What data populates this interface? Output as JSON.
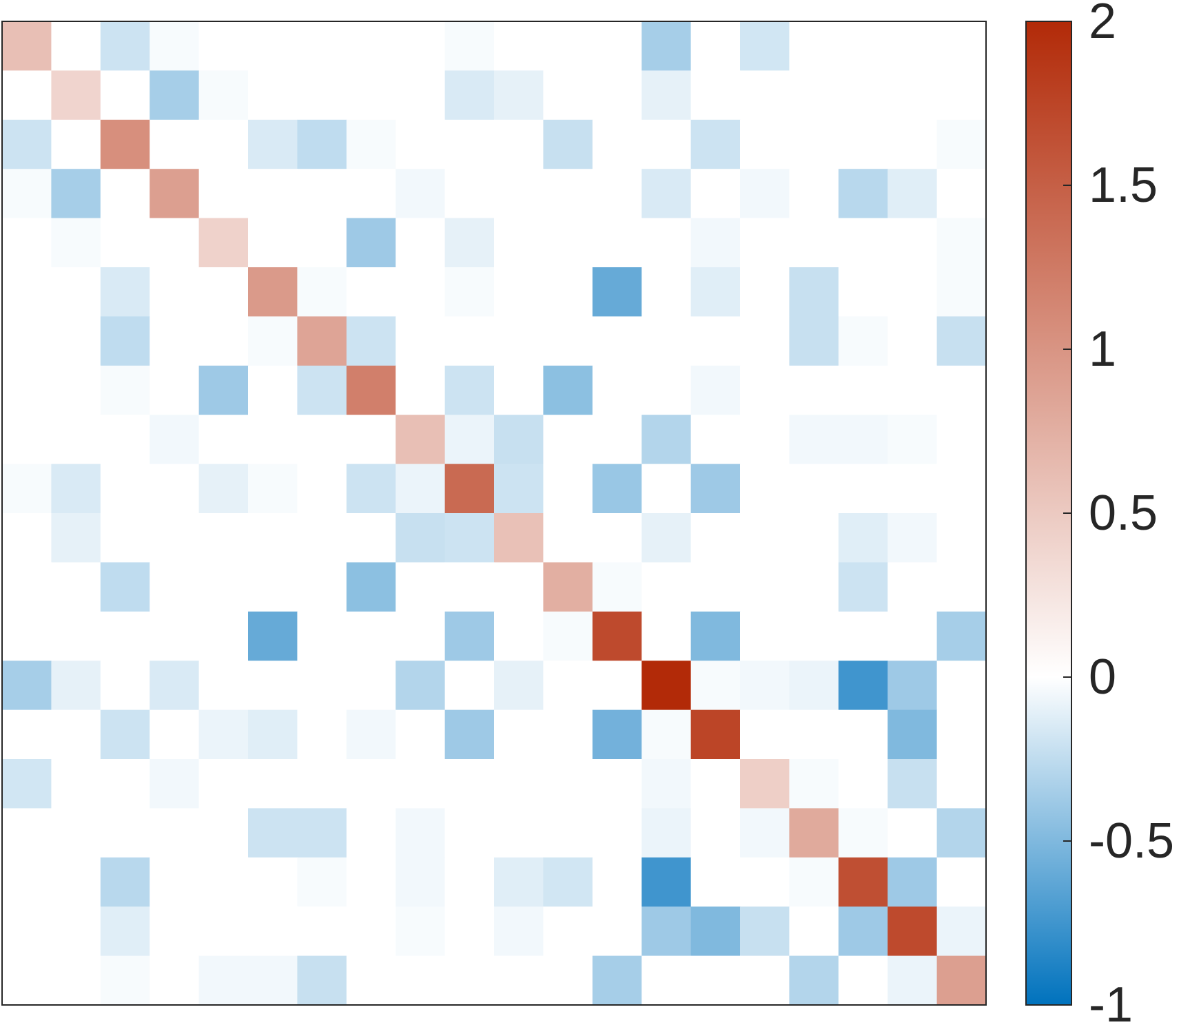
{
  "chart_data": {
    "type": "heatmap",
    "title": "",
    "xlabel": "",
    "ylabel": "",
    "rows": 20,
    "cols": 20,
    "matrix": [
      [
        0.6,
        0,
        -0.2,
        -0.03,
        0,
        0,
        0,
        0,
        0,
        -0.03,
        0,
        0,
        0,
        -0.35,
        0,
        -0.18,
        0,
        0,
        0,
        0
      ],
      [
        0,
        0.4,
        0,
        -0.35,
        -0.03,
        0,
        0,
        0,
        0,
        -0.15,
        -0.1,
        0,
        0,
        -0.1,
        0,
        0,
        0,
        0,
        0,
        0
      ],
      [
        -0.2,
        0,
        1.05,
        0,
        0,
        -0.15,
        -0.25,
        -0.03,
        0,
        0,
        0,
        -0.22,
        0,
        0,
        -0.2,
        0,
        0,
        0,
        0,
        -0.03
      ],
      [
        -0.03,
        -0.35,
        0,
        0.9,
        0,
        0,
        0,
        0,
        -0.05,
        0,
        0,
        0,
        0,
        -0.15,
        0,
        -0.05,
        0,
        -0.28,
        -0.12,
        0
      ],
      [
        0,
        -0.03,
        0,
        0,
        0.42,
        0,
        0,
        -0.38,
        0,
        -0.1,
        0,
        0,
        0,
        0,
        -0.05,
        0,
        0,
        0,
        0,
        -0.03
      ],
      [
        0,
        0,
        -0.15,
        0,
        0,
        0.95,
        -0.03,
        0,
        0,
        -0.03,
        0,
        0,
        -0.6,
        0,
        -0.12,
        0,
        -0.22,
        0,
        0,
        -0.03
      ],
      [
        0,
        0,
        -0.25,
        0,
        0,
        -0.03,
        0.85,
        -0.2,
        0,
        0,
        0,
        0,
        0,
        0,
        0,
        0,
        -0.22,
        -0.03,
        0,
        -0.22
      ],
      [
        0,
        0,
        -0.03,
        0,
        -0.38,
        0,
        -0.2,
        1.2,
        0,
        -0.2,
        0,
        -0.45,
        0,
        0,
        -0.05,
        0,
        0,
        0,
        0,
        0
      ],
      [
        0,
        0,
        0,
        -0.05,
        0,
        0,
        0,
        0,
        0.6,
        -0.08,
        -0.22,
        0,
        0,
        -0.3,
        0,
        0,
        -0.05,
        -0.05,
        -0.03,
        0
      ],
      [
        -0.03,
        -0.15,
        0,
        0,
        -0.1,
        -0.03,
        0,
        -0.2,
        -0.08,
        1.4,
        -0.2,
        0,
        -0.4,
        0,
        -0.38,
        0,
        0,
        0,
        0,
        0
      ],
      [
        0,
        -0.1,
        0,
        0,
        0,
        0,
        0,
        0,
        -0.22,
        -0.2,
        0.58,
        0,
        0,
        -0.1,
        0,
        0,
        0,
        -0.12,
        -0.05,
        0
      ],
      [
        0,
        0,
        -0.25,
        0,
        0,
        0,
        0,
        -0.45,
        0,
        0,
        0,
        0.75,
        -0.03,
        0,
        0,
        0,
        0,
        -0.2,
        0,
        0
      ],
      [
        0,
        0,
        0,
        0,
        0,
        -0.6,
        0,
        0,
        0,
        -0.38,
        0,
        -0.03,
        1.7,
        0,
        -0.5,
        0,
        0,
        0,
        0,
        -0.35
      ],
      [
        -0.35,
        -0.1,
        0,
        -0.15,
        0,
        0,
        0,
        0,
        -0.3,
        0,
        -0.1,
        0,
        0,
        2.0,
        -0.03,
        -0.05,
        -0.08,
        -0.75,
        -0.38,
        0
      ],
      [
        0,
        0,
        -0.2,
        0,
        -0.08,
        -0.12,
        0,
        -0.05,
        0,
        -0.38,
        0,
        0,
        -0.55,
        -0.03,
        1.75,
        0,
        0,
        0,
        -0.5,
        0
      ],
      [
        -0.18,
        0,
        0,
        -0.05,
        0,
        0,
        0,
        0,
        0,
        0,
        0,
        0,
        0,
        -0.05,
        0,
        0.45,
        -0.03,
        0,
        -0.22,
        0
      ],
      [
        0,
        0,
        0,
        0,
        0,
        -0.2,
        -0.2,
        0,
        -0.05,
        0,
        0,
        0,
        0,
        -0.08,
        0,
        -0.05,
        0.8,
        -0.03,
        0,
        -0.3
      ],
      [
        0,
        0,
        -0.28,
        0,
        0,
        0,
        -0.03,
        0,
        -0.05,
        0,
        -0.12,
        -0.18,
        0,
        -0.75,
        0,
        0,
        -0.03,
        1.65,
        -0.38,
        0
      ],
      [
        0,
        0,
        -0.12,
        0,
        0,
        0,
        0,
        0,
        -0.03,
        0,
        -0.05,
        0,
        0,
        -0.38,
        -0.5,
        -0.22,
        0,
        -0.38,
        1.7,
        -0.08
      ],
      [
        0,
        0,
        -0.03,
        0,
        -0.05,
        -0.05,
        -0.22,
        0,
        0,
        0,
        0,
        0,
        -0.35,
        0,
        0,
        0,
        -0.3,
        0,
        -0.08,
        0.9
      ]
    ],
    "colorbar": {
      "range": [
        -1,
        2
      ],
      "ticks": [
        2,
        1.5,
        1,
        0.5,
        0,
        -0.5,
        -1
      ],
      "tick_labels": [
        "2",
        "1.5",
        "1",
        "0.5",
        "0",
        "-0.5",
        "-1"
      ],
      "neg_color": "#0072BD",
      "zero_color": "#FFFFFF",
      "pos_color": "#B22A08"
    },
    "grid": false,
    "legend": "colorbar-right"
  }
}
